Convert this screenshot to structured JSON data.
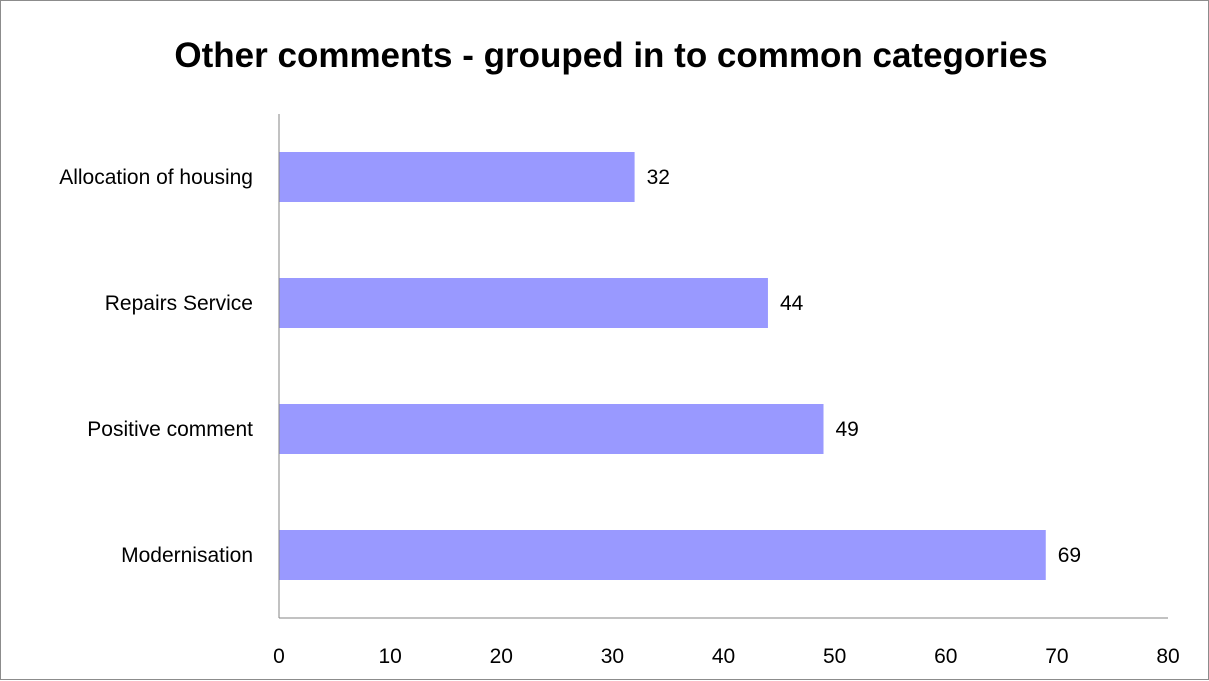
{
  "chart_data": {
    "type": "bar",
    "orientation": "horizontal",
    "title": "Other comments - grouped in to common categories",
    "xlabel": "",
    "ylabel": "",
    "categories": [
      "Allocation of housing",
      "Repairs Service",
      "Positive comment",
      "Modernisation"
    ],
    "values": [
      32,
      44,
      49,
      69
    ],
    "xlim": [
      0,
      80
    ],
    "x_ticks": [
      "0",
      "10",
      "20",
      "30",
      "40",
      "50",
      "60",
      "70",
      "80"
    ],
    "data_labels": [
      "32",
      "44",
      "49",
      "69"
    ],
    "bar_color": "#9999ff",
    "grid": false,
    "legend": "none"
  }
}
